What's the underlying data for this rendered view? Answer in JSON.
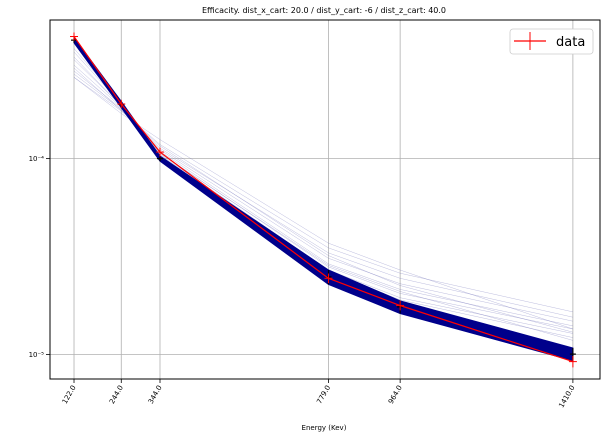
{
  "chart_data": {
    "type": "line",
    "title": "Efficacity. dist_x_cart: 20.0 / dist_y_cart: -6 / dist_z_cart: 40.0",
    "xlabel": "Energy (Kev)",
    "ylabel": "",
    "x": [
      122.0,
      244.0,
      344.0,
      779.0,
      964.0,
      1410.0
    ],
    "x_tick_labels": [
      "122.0",
      "244.0",
      "344.0",
      "779.0",
      "964.0",
      "1410.0"
    ],
    "xlim": [
      60,
      1480
    ],
    "y_scale": "log",
    "ylim": [
      7.5e-06,
      0.00051
    ],
    "y_ticks": [
      1e-05,
      0.0001
    ],
    "y_tick_labels": [
      "10⁻⁵",
      "10⁻⁴"
    ],
    "grid": true,
    "legend": {
      "position": "top-right",
      "entries": [
        "data"
      ]
    },
    "series": [
      {
        "name": "data",
        "color": "#ff0000",
        "marker": "+",
        "values": [
          0.00042,
          0.00019,
          0.000108,
          2.45e-05,
          1.78e-05,
          9.2e-06
        ],
        "errors": [
          1e-05,
          5e-06,
          3e-06,
          8e-07,
          6e-07,
          4e-07
        ]
      }
    ],
    "simulation_band": {
      "color": "#00008b",
      "lower": [
        0.00039,
        0.000182,
        9.7e-05,
        2.28e-05,
        1.62e-05,
        9.3e-06
      ],
      "upper": [
        0.000415,
        0.000196,
        0.000103,
        2.7e-05,
        1.88e-05,
        1.08e-05
      ]
    },
    "simulation_spread_lines": {
      "color": "#6b6bb5",
      "lines": [
        [
          0.00026,
          0.000175,
          0.000118,
          3.5e-05,
          2.6e-05,
          1.65e-05
        ],
        [
          0.00027,
          0.000178,
          0.000113,
          3.3e-05,
          2.45e-05,
          1.55e-05
        ],
        [
          0.00028,
          0.00018,
          0.000111,
          3.1e-05,
          2.3e-05,
          1.48e-05
        ],
        [
          0.0003,
          0.000183,
          0.000109,
          2.9e-05,
          2.15e-05,
          1.4e-05
        ],
        [
          0.00032,
          0.000186,
          0.000107,
          2.8e-05,
          2.05e-05,
          1.35e-05
        ],
        [
          0.00035,
          0.00019,
          0.000105,
          2.7e-05,
          1.95e-05,
          1.28e-05
        ],
        [
          0.000365,
          0.000192,
          0.000104,
          2.65e-05,
          1.9e-05,
          1.22e-05
        ],
        [
          0.00026,
          0.00017,
          0.000125,
          3.7e-05,
          2.7e-05,
          1.35e-05
        ],
        [
          0.00029,
          0.000176,
          0.000116,
          3.2e-05,
          2.25e-05,
          1.3e-05
        ],
        [
          0.00033,
          0.000185,
          0.000106,
          2.85e-05,
          2.1e-05,
          1.18e-05
        ]
      ]
    },
    "marker_color": "#000000"
  }
}
